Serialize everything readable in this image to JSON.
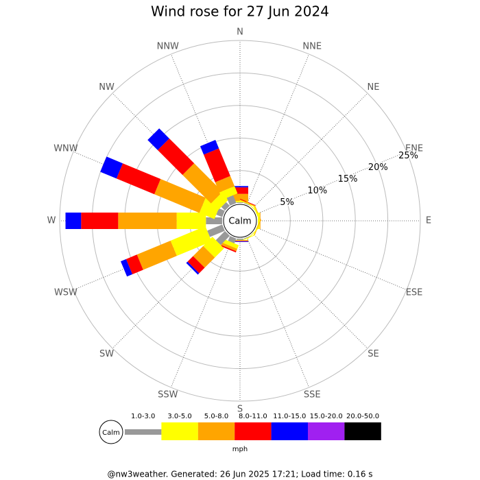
{
  "chart_data": {
    "type": "windrose",
    "title": "Wind rose for 27 Jun 2024",
    "categories": [
      "N",
      "NNE",
      "NE",
      "ENE",
      "E",
      "ESE",
      "SE",
      "SSE",
      "S",
      "SSW",
      "SW",
      "WSW",
      "W",
      "WNW",
      "NW",
      "NNW"
    ],
    "calm_label": "Calm",
    "series": [
      {
        "name": "1.0-3.0",
        "color": "#999999",
        "values": [
          0.1,
          0.1,
          0,
          0,
          0,
          0,
          0,
          0.1,
          0.2,
          0.8,
          2,
          2.5,
          2.5,
          1,
          0.8,
          1.3
        ]
      },
      {
        "name": "3.0-5.0",
        "color": "#ffff00",
        "values": [
          0.2,
          0.1,
          0.1,
          0.2,
          0.3,
          0.1,
          0.1,
          0.1,
          0.1,
          0.6,
          2,
          5.8,
          4.5,
          2.5,
          1.5,
          1.2
        ]
      },
      {
        "name": "5.0-8.0",
        "color": "#ffa500",
        "values": [
          1.1,
          0.1,
          0,
          0.1,
          0.1,
          0.1,
          0,
          0,
          0,
          0.4,
          2.2,
          5.6,
          9,
          7.5,
          6.2,
          1.7
        ]
      },
      {
        "name": "8.0-11.0",
        "color": "#ff0000",
        "values": [
          1.0,
          0.1,
          0,
          0,
          0,
          0,
          0,
          0,
          0.1,
          0.2,
          1.2,
          1.8,
          5.7,
          6.3,
          5.4,
          4.6
        ]
      },
      {
        "name": "11.0-15.0",
        "color": "#0000ff",
        "values": [
          0.2,
          0,
          0,
          0,
          0,
          0,
          0,
          0,
          0.1,
          0,
          0.3,
          0.9,
          2.4,
          2.7,
          2.2,
          1.4
        ]
      },
      {
        "name": "15.0-20.0",
        "color": "#a020f0",
        "values": [
          0,
          0,
          0,
          0,
          0,
          0,
          0,
          0,
          0,
          0,
          0,
          0,
          0,
          0,
          0,
          0
        ]
      },
      {
        "name": "20.0-50.0",
        "color": "#000000",
        "values": [
          0,
          0,
          0,
          0,
          0,
          0,
          0,
          0,
          0,
          0,
          0,
          0,
          0,
          0,
          0,
          0
        ]
      }
    ],
    "rlim": [
      0,
      25
    ],
    "rticks": [
      {
        "value": 5,
        "label": "5%"
      },
      {
        "value": 10,
        "label": "10%"
      },
      {
        "value": 15,
        "label": "15%"
      },
      {
        "value": 20,
        "label": "20%"
      },
      {
        "value": 25,
        "label": "25%"
      }
    ],
    "legend_title": "mph",
    "footer": "@nw3weather. Generated: 26 Jun 2025 17:21; Load time: 0.16 s"
  }
}
